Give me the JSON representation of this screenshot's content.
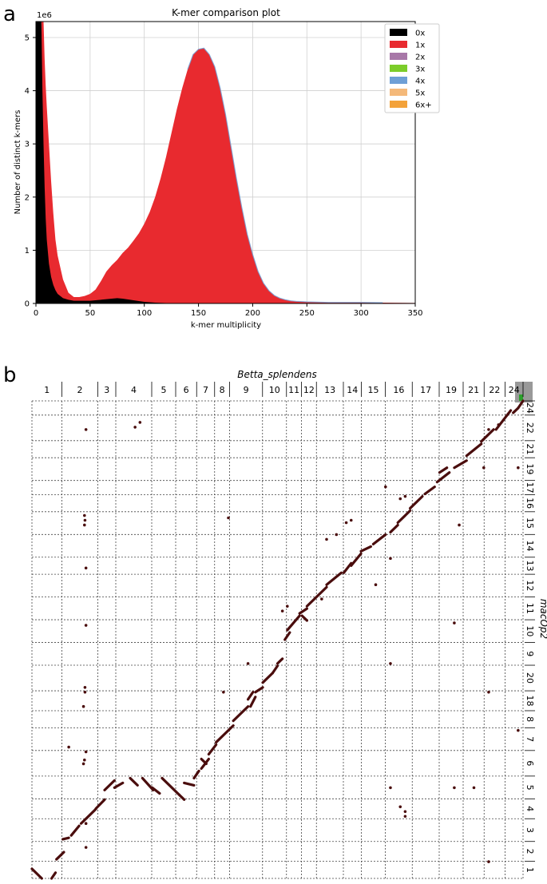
{
  "panel_labels": {
    "a": "a",
    "b": "b"
  },
  "chart_data": [
    {
      "type": "area",
      "title": "K-mer comparison plot",
      "xlabel": "k-mer multiplicity",
      "ylabel": "Number of distinct k-mers",
      "y_scale_note": "1e6",
      "xlim": [
        0,
        350
      ],
      "ylim": [
        0,
        5.3
      ],
      "xticks": [
        0,
        50,
        100,
        150,
        200,
        250,
        300,
        350
      ],
      "yticks": [
        0,
        1,
        2,
        3,
        4,
        5
      ],
      "grid": true,
      "legend_position": "top-right",
      "series": [
        {
          "name": "0x",
          "color": "#000000",
          "x": [
            0,
            1,
            2,
            3,
            4,
            5,
            6,
            7,
            8,
            9,
            10,
            12,
            14,
            16,
            18,
            20,
            25,
            30,
            35,
            40,
            50,
            60,
            70,
            75,
            80,
            90,
            100,
            110,
            120,
            130,
            140,
            150
          ],
          "y": [
            5.3,
            5.3,
            5.3,
            5.3,
            5.3,
            5.3,
            4.0,
            3.0,
            2.2,
            1.6,
            1.2,
            0.75,
            0.5,
            0.35,
            0.25,
            0.18,
            0.1,
            0.07,
            0.05,
            0.05,
            0.05,
            0.07,
            0.09,
            0.1,
            0.09,
            0.06,
            0.03,
            0.015,
            0.008,
            0.004,
            0.002,
            0
          ]
        },
        {
          "name": "1x",
          "color": "#e82a2f",
          "x": [
            5,
            6,
            7,
            8,
            9,
            10,
            12,
            14,
            16,
            18,
            20,
            25,
            30,
            35,
            40,
            45,
            50,
            55,
            60,
            65,
            70,
            75,
            80,
            85,
            90,
            95,
            100,
            105,
            110,
            115,
            120,
            125,
            130,
            135,
            140,
            145,
            150,
            155,
            160,
            165,
            170,
            175,
            180,
            185,
            190,
            195,
            200,
            205,
            210,
            215,
            220,
            225,
            230,
            235,
            240,
            250,
            260,
            270,
            280,
            290,
            300,
            320,
            350
          ],
          "y": [
            5.3,
            5.3,
            5.3,
            4.6,
            4.1,
            3.7,
            3.0,
            2.3,
            1.7,
            1.2,
            0.9,
            0.45,
            0.2,
            0.12,
            0.12,
            0.14,
            0.18,
            0.26,
            0.42,
            0.6,
            0.72,
            0.82,
            0.95,
            1.05,
            1.18,
            1.32,
            1.5,
            1.72,
            2.0,
            2.35,
            2.75,
            3.2,
            3.65,
            4.05,
            4.4,
            4.68,
            4.78,
            4.8,
            4.68,
            4.45,
            4.05,
            3.55,
            2.95,
            2.35,
            1.8,
            1.3,
            0.92,
            0.6,
            0.38,
            0.24,
            0.15,
            0.1,
            0.07,
            0.05,
            0.04,
            0.03,
            0.025,
            0.02,
            0.02,
            0.02,
            0.02,
            0.015,
            0.01
          ]
        },
        {
          "name": "2x",
          "color": "#a878a8",
          "x": [],
          "y": []
        },
        {
          "name": "3x",
          "color": "#7ccd2a",
          "x": [],
          "y": []
        },
        {
          "name": "4x",
          "color": "#6e9fd6",
          "x": [],
          "y": []
        },
        {
          "name": "5x",
          "color": "#f4b97a",
          "x": [],
          "y": []
        },
        {
          "name": "6x+",
          "color": "#f3a23a",
          "x": [],
          "y": []
        }
      ]
    },
    {
      "type": "scatter",
      "xlabel": "Betta_splendens",
      "ylabel": "macOp2",
      "grid": true,
      "x_categories": [
        "1",
        "2",
        "3",
        "4",
        "5",
        "6",
        "7",
        "8",
        "9",
        "10",
        "11",
        "12",
        "13",
        "14",
        "15",
        "16",
        "17",
        "19",
        "21",
        "22",
        "24"
      ],
      "y_categories_bottom_to_top": [
        "1",
        "2",
        "3",
        "4",
        "5",
        "6",
        "7",
        "8",
        "18",
        "20",
        "9",
        "10",
        "11",
        "12",
        "13",
        "14",
        "15",
        "16",
        "17",
        "19",
        "21",
        "22",
        "24"
      ],
      "segments_note": "alignment blocks given as [x_start, y_start, x_end, y_end] in fractions of the genome span (0..1)",
      "segments": [
        [
          0.0,
          0.02,
          0.02,
          0.0
        ],
        [
          0.04,
          0.0,
          0.048,
          0.012
        ],
        [
          0.05,
          0.04,
          0.065,
          0.055
        ],
        [
          0.063,
          0.082,
          0.075,
          0.085
        ],
        [
          0.08,
          0.09,
          0.096,
          0.11
        ],
        [
          0.1,
          0.115,
          0.13,
          0.145
        ],
        [
          0.13,
          0.146,
          0.148,
          0.165
        ],
        [
          0.148,
          0.185,
          0.168,
          0.205
        ],
        [
          0.168,
          0.19,
          0.185,
          0.2
        ],
        [
          0.2,
          0.21,
          0.215,
          0.195
        ],
        [
          0.225,
          0.21,
          0.247,
          0.185
        ],
        [
          0.245,
          0.19,
          0.26,
          0.178
        ],
        [
          0.265,
          0.21,
          0.3,
          0.175
        ],
        [
          0.3,
          0.175,
          0.31,
          0.165
        ],
        [
          0.31,
          0.2,
          0.33,
          0.195
        ],
        [
          0.33,
          0.21,
          0.34,
          0.225
        ],
        [
          0.345,
          0.23,
          0.36,
          0.25
        ],
        [
          0.345,
          0.25,
          0.355,
          0.24
        ],
        [
          0.36,
          0.26,
          0.375,
          0.28
        ],
        [
          0.375,
          0.285,
          0.41,
          0.32
        ],
        [
          0.41,
          0.33,
          0.44,
          0.36
        ],
        [
          0.445,
          0.36,
          0.455,
          0.38
        ],
        [
          0.44,
          0.375,
          0.45,
          0.39
        ],
        [
          0.455,
          0.39,
          0.47,
          0.4
        ],
        [
          0.47,
          0.41,
          0.49,
          0.43
        ],
        [
          0.49,
          0.43,
          0.5,
          0.445
        ],
        [
          0.5,
          0.45,
          0.51,
          0.46
        ],
        [
          0.515,
          0.5,
          0.525,
          0.515
        ],
        [
          0.52,
          0.52,
          0.545,
          0.55
        ],
        [
          0.55,
          0.55,
          0.56,
          0.54
        ],
        [
          0.545,
          0.555,
          0.56,
          0.565
        ],
        [
          0.56,
          0.57,
          0.6,
          0.61
        ],
        [
          0.6,
          0.615,
          0.63,
          0.64
        ],
        [
          0.635,
          0.64,
          0.65,
          0.66
        ],
        [
          0.65,
          0.655,
          0.67,
          0.68
        ],
        [
          0.67,
          0.685,
          0.69,
          0.695
        ],
        [
          0.695,
          0.7,
          0.72,
          0.72
        ],
        [
          0.73,
          0.725,
          0.745,
          0.74
        ],
        [
          0.745,
          0.745,
          0.77,
          0.77
        ],
        [
          0.77,
          0.775,
          0.795,
          0.8
        ],
        [
          0.8,
          0.805,
          0.82,
          0.82
        ],
        [
          0.825,
          0.83,
          0.85,
          0.85
        ],
        [
          0.83,
          0.85,
          0.845,
          0.86
        ],
        [
          0.86,
          0.86,
          0.885,
          0.875
        ],
        [
          0.885,
          0.885,
          0.915,
          0.91
        ],
        [
          0.915,
          0.915,
          0.94,
          0.94
        ],
        [
          0.945,
          0.94,
          0.96,
          0.96
        ],
        [
          0.96,
          0.96,
          0.975,
          0.98
        ],
        [
          0.98,
          0.975,
          0.99,
          0.985
        ],
        [
          0.99,
          0.985,
          1.0,
          1.0
        ]
      ],
      "dots_note": "scattered single alignments [x, y] as fractions of the genome span",
      "dots": [
        [
          0.11,
          0.115
        ],
        [
          0.11,
          0.065
        ],
        [
          0.105,
          0.24
        ],
        [
          0.107,
          0.248
        ],
        [
          0.11,
          0.265
        ],
        [
          0.075,
          0.275
        ],
        [
          0.105,
          0.36
        ],
        [
          0.108,
          0.39
        ],
        [
          0.108,
          0.4
        ],
        [
          0.11,
          0.53
        ],
        [
          0.11,
          0.65
        ],
        [
          0.107,
          0.74
        ],
        [
          0.108,
          0.75
        ],
        [
          0.107,
          0.76
        ],
        [
          0.11,
          0.94
        ],
        [
          0.21,
          0.945
        ],
        [
          0.22,
          0.955
        ],
        [
          0.4,
          0.755
        ],
        [
          0.39,
          0.39
        ],
        [
          0.44,
          0.45
        ],
        [
          0.59,
          0.585
        ],
        [
          0.6,
          0.71
        ],
        [
          0.62,
          0.72
        ],
        [
          0.64,
          0.745
        ],
        [
          0.65,
          0.75
        ],
        [
          0.7,
          0.615
        ],
        [
          0.73,
          0.45
        ],
        [
          0.73,
          0.67
        ],
        [
          0.75,
          0.795
        ],
        [
          0.76,
          0.8
        ],
        [
          0.87,
          0.74
        ],
        [
          0.86,
          0.535
        ],
        [
          0.92,
          0.86
        ],
        [
          0.93,
          0.39
        ],
        [
          0.93,
          0.94
        ],
        [
          0.95,
          0.95
        ],
        [
          0.73,
          0.19
        ],
        [
          0.75,
          0.15
        ],
        [
          0.76,
          0.13
        ],
        [
          0.76,
          0.14
        ],
        [
          0.86,
          0.19
        ],
        [
          0.9,
          0.19
        ],
        [
          0.93,
          0.035
        ],
        [
          0.99,
          0.86
        ],
        [
          0.99,
          0.31
        ],
        [
          0.51,
          0.56
        ],
        [
          0.52,
          0.57
        ],
        [
          0.72,
          0.82
        ]
      ]
    }
  ]
}
